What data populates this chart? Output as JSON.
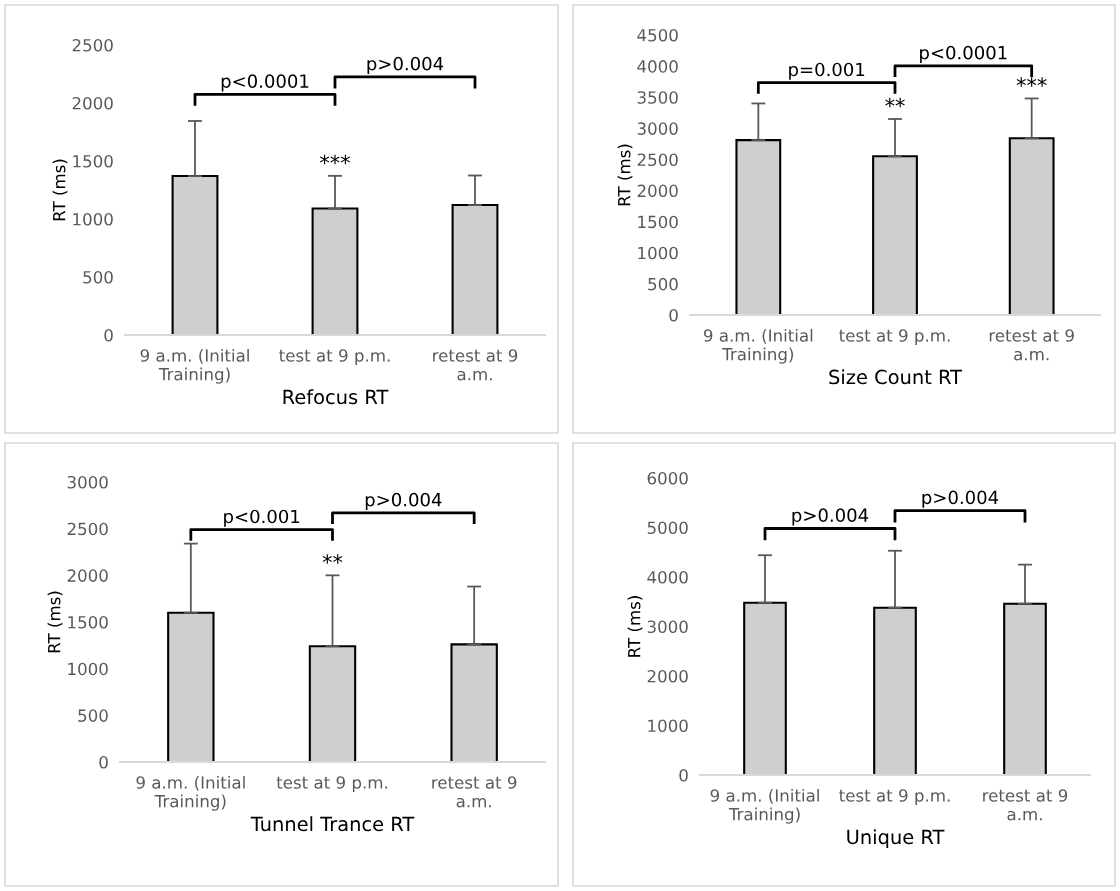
{
  "chart_data": [
    {
      "type": "bar",
      "xlabel": "Refocus RT",
      "ylabel": "RT (ms)",
      "categories": [
        "9 a.m. (Initial\nTraining)",
        "test at 9 p.m.",
        "retest at 9\na.m."
      ],
      "values": [
        1370,
        1090,
        1120
      ],
      "errors": [
        [
          1370,
          1845
        ],
        [
          1090,
          1372
        ],
        [
          1120,
          1375
        ]
      ],
      "color": "#d0cfd0",
      "ylim": [
        0,
        2500
      ],
      "yticks": [
        0,
        500,
        1000,
        1500,
        2000,
        2500
      ],
      "grid": false,
      "annotations": [
        "p<0.0001",
        "p>0.004",
        {
          "text": "***",
          "x": "test at 9 p.m.",
          "y": 1372
        }
      ]
    },
    {
      "type": "bar",
      "xlabel": "Size Count RT",
      "ylabel": "RT (ms)",
      "categories": [
        "9 a.m. (Initial\nTraining)",
        "test at 9 p.m.",
        "retest at 9\na.m."
      ],
      "values": [
        2810,
        2550,
        2840
      ],
      "errors": [
        [
          2810,
          3400
        ],
        [
          2550,
          3150
        ],
        [
          2840,
          3480
        ]
      ],
      "color": "#d0cfd0",
      "ylim": [
        0,
        4500
      ],
      "yticks": [
        0,
        500,
        1000,
        1500,
        2000,
        2500,
        3000,
        3500,
        4000,
        4500
      ],
      "grid": false,
      "annotations": [
        "p=0.001",
        "p<0.0001",
        {
          "text": "**",
          "x": "test at 9 p.m.",
          "y": 3150
        },
        {
          "text": "***",
          "x": "retest at 9\na.m.",
          "y": 3480
        }
      ]
    },
    {
      "type": "bar",
      "xlabel": "Tunnel Trance RT",
      "ylabel": "RT (ms)",
      "categories": [
        "9 a.m. (Initial\nTraining)",
        "test at 9 p.m.",
        "retest at 9\na.m."
      ],
      "values": [
        1600,
        1240,
        1260
      ],
      "errors": [
        [
          1600,
          2340
        ],
        [
          1240,
          2000
        ],
        [
          1260,
          1880
        ]
      ],
      "color": "#d0cfd0",
      "ylim": [
        0,
        3000
      ],
      "yticks": [
        0,
        500,
        1000,
        1500,
        2000,
        2500,
        3000
      ],
      "grid": false,
      "annotations": [
        "p<0.001",
        "p>0.004",
        {
          "text": "**",
          "x": "test at 9 p.m.",
          "y": 2000
        }
      ]
    },
    {
      "type": "bar",
      "xlabel": "Unique RT",
      "ylabel": "RT (ms)",
      "categories": [
        "9 a.m. (Initial\nTraining)",
        "test at 9 p.m.",
        "retest at 9\na.m."
      ],
      "values": [
        3480,
        3380,
        3460
      ],
      "errors": [
        [
          3480,
          4440
        ],
        [
          3380,
          4530
        ],
        [
          3460,
          4250
        ]
      ],
      "color": "#d0cfd0",
      "ylim": [
        0,
        6000
      ],
      "yticks": [
        0,
        1000,
        2000,
        3000,
        4000,
        5000,
        6000
      ],
      "grid": false,
      "annotations": [
        "p>0.004",
        "p>0.004"
      ]
    }
  ]
}
